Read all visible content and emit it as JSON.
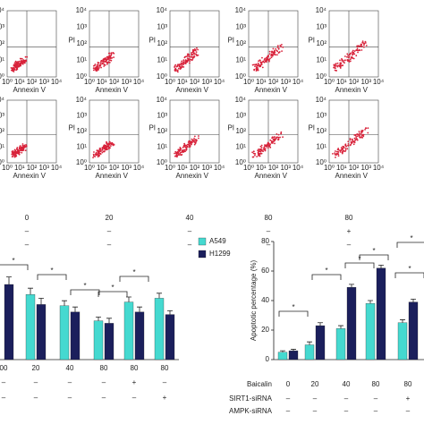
{
  "flow": {
    "y_label": "PI",
    "x_label": "Annexin V",
    "tick_labels": [
      "10⁰",
      "10¹",
      "10²",
      "10³",
      "10⁴"
    ],
    "doses": [
      "0",
      "20",
      "40",
      "80",
      "80"
    ],
    "row2": [
      "–",
      "–",
      "–",
      "–",
      "+"
    ],
    "row3": [
      "–",
      "–",
      "–",
      "–",
      "–"
    ]
  },
  "chart_data": [
    {
      "type": "bar",
      "categories": [
        "00",
        "20",
        "40",
        "80",
        "80",
        "80"
      ],
      "rows": [
        [
          "–",
          "–",
          "–",
          "–",
          "+",
          "–"
        ],
        [
          "–",
          "–",
          "–",
          "–",
          "–",
          "+"
        ]
      ],
      "series": [
        {
          "name": "A549",
          "color": "#45d9d0",
          "values": [
            null,
            52,
            43,
            31,
            46,
            49
          ],
          "errors": [
            null,
            5,
            4,
            3,
            4,
            4
          ]
        },
        {
          "name": "H1299",
          "color": "#1b1f5c",
          "values": [
            60,
            44,
            38,
            29,
            38,
            36
          ],
          "errors": [
            6,
            5,
            4,
            4,
            4,
            3
          ]
        }
      ],
      "ylim": [
        0,
        100
      ],
      "annotations": [
        "*",
        "*",
        "*",
        "*",
        "*"
      ]
    },
    {
      "type": "bar",
      "y_label": "Apoptotic percentage (%)",
      "row_titles": [
        "Baicalin",
        "SIRT1-siRNA",
        "AMPK-siRNA"
      ],
      "categories": [
        "0",
        "20",
        "40",
        "80",
        "80"
      ],
      "rows": [
        [
          "–",
          "–",
          "–",
          "–",
          "+"
        ],
        [
          "–",
          "–",
          "–",
          "–",
          "–"
        ]
      ],
      "series": [
        {
          "color": "#45d9d0",
          "values": [
            5,
            10,
            21,
            38,
            25
          ],
          "errors": [
            1,
            2,
            2,
            2,
            2
          ]
        },
        {
          "color": "#1b1f5c",
          "values": [
            6,
            23,
            49,
            62,
            39
          ],
          "errors": [
            1,
            2,
            2,
            2,
            2
          ]
        }
      ],
      "ylim": [
        0,
        80
      ],
      "yticks": [
        0,
        20,
        40,
        60,
        80
      ],
      "annotations": [
        "*",
        "*",
        "*",
        "*",
        "*",
        "*"
      ]
    }
  ]
}
